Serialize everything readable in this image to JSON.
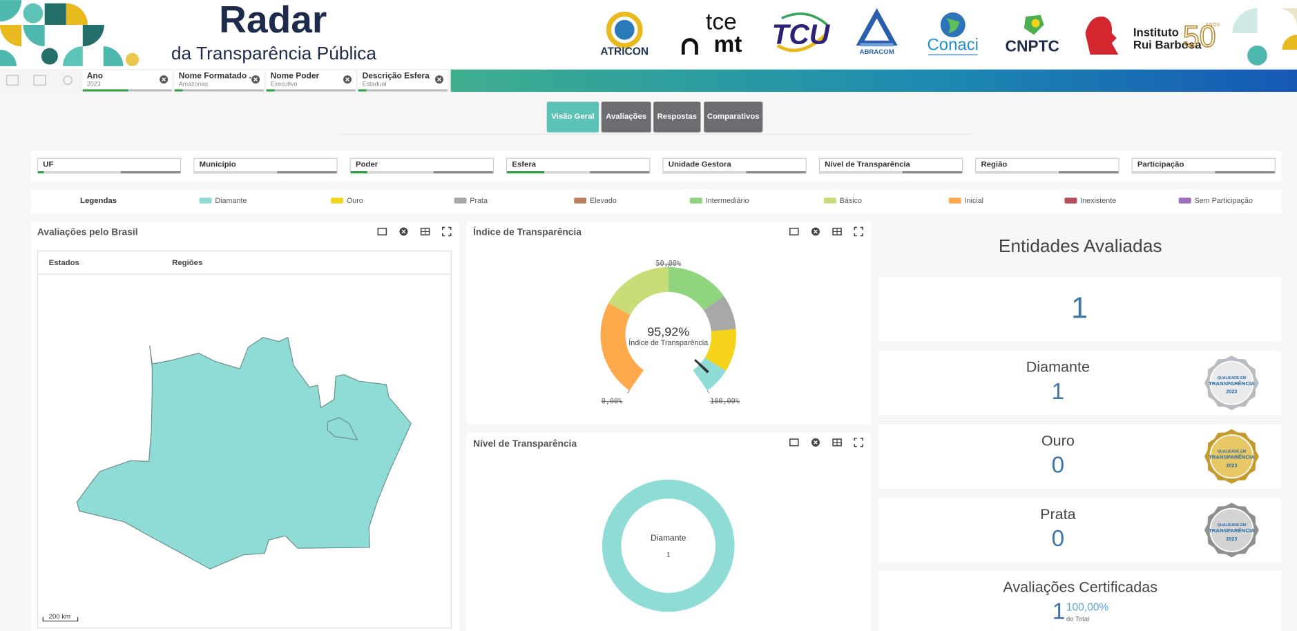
{
  "header": {
    "title": "Radar",
    "subtitle": "da Transparência Pública",
    "logos": [
      "ATRICON",
      "tce",
      "mt",
      "TCU",
      "ABRACOM",
      "Conaci",
      "CNPTC",
      "Instituto",
      "Rui Barbosa",
      "50",
      "ANOS"
    ]
  },
  "selections": [
    {
      "field": "Ano",
      "value": "2023"
    },
    {
      "field": "Nome Formatado ...",
      "value": "Amazonas"
    },
    {
      "field": "Nome Poder",
      "value": "Executivo"
    },
    {
      "field": "Descrição Esfera",
      "value": "Estadual"
    }
  ],
  "tabs": [
    "Visão Geral",
    "Avaliações",
    "Respostas",
    "Comparativos"
  ],
  "filters": [
    "UF",
    "Município",
    "Poder",
    "Esfera",
    "Unidade Gestora",
    "Nível de Transparência",
    "Região",
    "Participação"
  ],
  "legend": {
    "title": "Legendas",
    "items": [
      {
        "name": "Diamante",
        "color": "#8fdcd6"
      },
      {
        "name": "Ouro",
        "color": "#f5d31b"
      },
      {
        "name": "Prata",
        "color": "#a8a8a8"
      },
      {
        "name": "Elevado",
        "color": "#c0805f"
      },
      {
        "name": "Intermediário",
        "color": "#8ed57e"
      },
      {
        "name": "Básico",
        "color": "#c8dc78"
      },
      {
        "name": "Inicial",
        "color": "#ffa94d"
      },
      {
        "name": "Inexistente",
        "color": "#b94e5a"
      },
      {
        "name": "Sem Participação",
        "color": "#9e6fc1"
      }
    ]
  },
  "map_panel": {
    "title": "Avaliações pelo Brasil",
    "tabs": [
      "Estados",
      "Regiões"
    ],
    "scale": "200 km"
  },
  "gauge_panel": {
    "title": "Índice de Transparência",
    "value": 95.92,
    "value_label": "95,92%",
    "caption": "Índice de Transparência",
    "ticks": [
      {
        "value": 0,
        "label": "0,00%"
      },
      {
        "value": 50,
        "label": "50,00%"
      },
      {
        "value": 100,
        "label": "100,00%"
      }
    ]
  },
  "level_panel": {
    "title": "Nível de Transparência",
    "slices": [
      {
        "name": "Diamante",
        "value": 1
      }
    ]
  },
  "summary": {
    "title": "Entidades Avaliadas",
    "total": 1,
    "cards": [
      {
        "name": "Diamante",
        "value": 1,
        "badge": "QUALIDADE EM",
        "badge_sub": "TRANSPARÊNCIA",
        "year": "2023"
      },
      {
        "name": "Ouro",
        "value": 0,
        "badge": "QUALIDADE EM",
        "badge_sub": "TRANSPARÊNCIA",
        "year": "2023"
      },
      {
        "name": "Prata",
        "value": 0,
        "badge": "QUALIDADE EM",
        "badge_sub": "TRANSPARÊNCIA",
        "year": "2023"
      }
    ],
    "certified": {
      "title": "Avaliações Certificadas",
      "value": 1,
      "percent_label": "100,00%",
      "note": "do Total"
    }
  }
}
